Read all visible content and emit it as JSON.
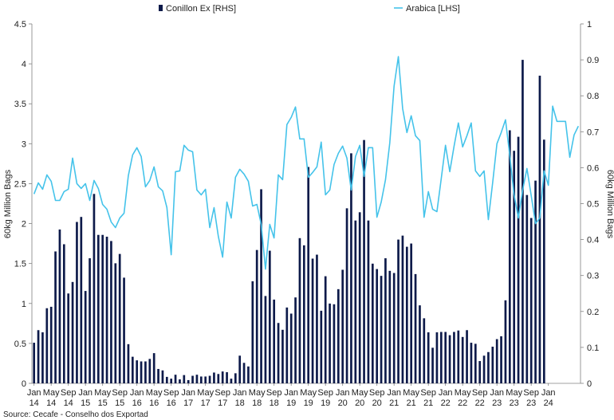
{
  "chart_data": {
    "type": "bar",
    "source": "Source: Cecafe - Conselho dos Exportad",
    "ylabel_left": "60kg Million Bags",
    "ylabel_right": "60kg Million Bags",
    "ylim_left": [
      0,
      4.5
    ],
    "ylim_right": [
      0,
      1
    ],
    "yticks_left": [
      "0",
      "0.5",
      "1",
      "1.5",
      "2",
      "2.5",
      "3",
      "3.5",
      "4",
      "4.5"
    ],
    "yticks_right": [
      "0",
      "0.1",
      "0.2",
      "0.3",
      "0.4",
      "0.5",
      "0.6",
      "0.7",
      "0.8",
      "0.9",
      "1"
    ],
    "x_tick_labels": [
      {
        "month": "Jan",
        "year": "14"
      },
      {
        "month": "May",
        "year": "14"
      },
      {
        "month": "Sep",
        "year": "14"
      },
      {
        "month": "Jan",
        "year": "15"
      },
      {
        "month": "May",
        "year": "15"
      },
      {
        "month": "Sep",
        "year": "15"
      },
      {
        "month": "Jan",
        "year": "16"
      },
      {
        "month": "May",
        "year": "16"
      },
      {
        "month": "Sep",
        "year": "16"
      },
      {
        "month": "Jan",
        "year": "17"
      },
      {
        "month": "May",
        "year": "17"
      },
      {
        "month": "Sep",
        "year": "17"
      },
      {
        "month": "Jan",
        "year": "18"
      },
      {
        "month": "May",
        "year": "18"
      },
      {
        "month": "Sep",
        "year": "18"
      },
      {
        "month": "Jan",
        "year": "19"
      },
      {
        "month": "May",
        "year": "19"
      },
      {
        "month": "Sep",
        "year": "19"
      },
      {
        "month": "Jan",
        "year": "20"
      },
      {
        "month": "May",
        "year": "20"
      },
      {
        "month": "Sep",
        "year": "20"
      },
      {
        "month": "Jan",
        "year": "21"
      },
      {
        "month": "May",
        "year": "21"
      },
      {
        "month": "Sep",
        "year": "21"
      },
      {
        "month": "Jan",
        "year": "22"
      },
      {
        "month": "May",
        "year": "22"
      },
      {
        "month": "Sep",
        "year": "22"
      },
      {
        "month": "Jan",
        "year": "23"
      },
      {
        "month": "May",
        "year": "23"
      },
      {
        "month": "Sep",
        "year": "23"
      },
      {
        "month": "Jan",
        "year": "24"
      }
    ],
    "series": [
      {
        "name": "Conillon Ex [RHS]",
        "type": "bar",
        "axis": "right",
        "color": "#0d1a4a",
        "values": [
          0.113,
          0.148,
          0.142,
          0.209,
          0.213,
          0.367,
          0.428,
          0.387,
          0.25,
          0.282,
          0.449,
          0.463,
          0.257,
          0.348,
          0.527,
          0.413,
          0.413,
          0.408,
          0.396,
          0.334,
          0.36,
          0.294,
          0.109,
          0.074,
          0.064,
          0.061,
          0.061,
          0.068,
          0.084,
          0.04,
          0.036,
          0.018,
          0.013,
          0.024,
          0.011,
          0.023,
          0.009,
          0.021,
          0.024,
          0.019,
          0.019,
          0.021,
          0.03,
          0.026,
          0.033,
          0.031,
          0.013,
          0.028,
          0.077,
          0.057,
          0.047,
          0.284,
          0.371,
          0.54,
          0.243,
          0.369,
          0.233,
          0.168,
          0.149,
          0.211,
          0.194,
          0.239,
          0.404,
          0.384,
          0.602,
          0.347,
          0.358,
          0.202,
          0.298,
          0.222,
          0.22,
          0.262,
          0.316,
          0.487,
          0.64,
          0.453,
          0.476,
          0.677,
          0.453,
          0.333,
          0.318,
          0.299,
          0.348,
          0.313,
          0.307,
          0.4,
          0.411,
          0.38,
          0.389,
          0.304,
          0.217,
          0.181,
          0.142,
          0.099,
          0.142,
          0.143,
          0.143,
          0.134,
          0.143,
          0.147,
          0.129,
          0.148,
          0.113,
          0.11,
          0.062,
          0.077,
          0.087,
          0.102,
          0.123,
          0.131,
          0.231,
          0.704,
          0.647,
          0.686,
          0.9,
          0.524,
          0.46,
          0.564,
          0.856,
          0.678
        ]
      },
      {
        "name": "Arabica [LHS]",
        "type": "line",
        "axis": "left",
        "color": "#45c3ea",
        "values": [
          2.37,
          2.51,
          2.43,
          2.61,
          2.53,
          2.29,
          2.29,
          2.4,
          2.43,
          2.82,
          2.5,
          2.44,
          2.5,
          2.29,
          2.54,
          2.44,
          2.24,
          2.18,
          2.02,
          1.95,
          2.07,
          2.13,
          2.6,
          2.86,
          2.95,
          2.84,
          2.46,
          2.54,
          2.71,
          2.46,
          2.41,
          2.2,
          1.61,
          2.65,
          2.66,
          2.98,
          2.92,
          2.9,
          2.42,
          2.36,
          2.43,
          1.95,
          2.2,
          1.84,
          1.58,
          2.27,
          2.07,
          2.58,
          2.68,
          2.62,
          2.53,
          2.22,
          2.24,
          1.99,
          1.43,
          1.99,
          1.82,
          2.61,
          2.55,
          3.24,
          3.33,
          3.46,
          3.06,
          3.06,
          2.58,
          2.64,
          2.71,
          3.02,
          2.36,
          2.42,
          2.74,
          2.88,
          2.97,
          2.82,
          2.42,
          2.84,
          2.98,
          2.59,
          2.95,
          2.95,
          2.08,
          2.27,
          2.55,
          3.01,
          3.72,
          4.09,
          3.44,
          3.14,
          3.35,
          3.1,
          3.04,
          2.08,
          2.4,
          2.18,
          2.15,
          2.56,
          2.98,
          2.65,
          2.97,
          3.26,
          2.96,
          3.1,
          3.26,
          2.66,
          2.59,
          2.66,
          2.05,
          2.51,
          3.0,
          3.14,
          3.3,
          2.85,
          2.36,
          2.07,
          2.42,
          2.69,
          2.35,
          2.0,
          2.07,
          2.66,
          2.48,
          3.47,
          3.28,
          3.28,
          3.28,
          2.83,
          3.11,
          3.22
        ]
      }
    ],
    "legend_position": "top-center",
    "grid": false
  }
}
